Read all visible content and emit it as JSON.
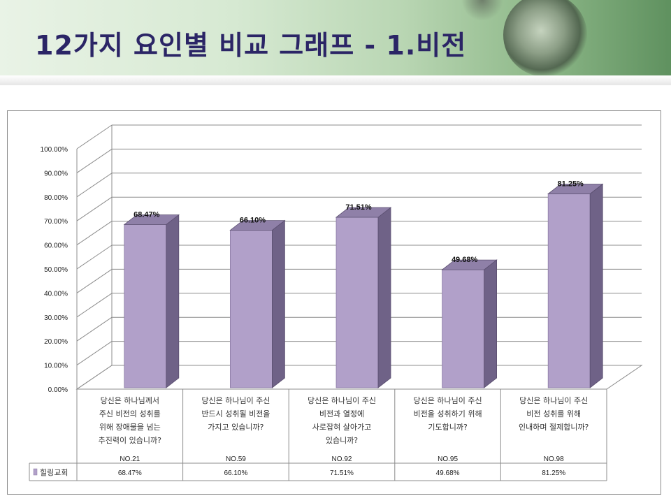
{
  "title": "12가지 요인별 비교 그래프 - 1.비전",
  "chart_data": {
    "type": "bar",
    "yticks": [
      "0.00%",
      "10.00%",
      "20.00%",
      "30.00%",
      "40.00%",
      "50.00%",
      "60.00%",
      "70.00%",
      "80.00%",
      "90.00%",
      "100.00%"
    ],
    "ylim": [
      0,
      100
    ],
    "categories": [
      {
        "question": [
          "당신은 하나님께서",
          "주신 비전의 성취를",
          "위해 장애물을 넘는",
          "추진력이 있습니까?"
        ],
        "no": "NO.21"
      },
      {
        "question": [
          "당신은 하나님이 주신",
          "반드시 성취될 비전을",
          "가지고 있습니까?"
        ],
        "no": "NO.59"
      },
      {
        "question": [
          "당신은 하나님이 주신",
          "비전과 열정에",
          "사로잡혀 살아가고",
          "있습니까?"
        ],
        "no": "NO.92"
      },
      {
        "question": [
          "당신은 하나님이 주신",
          "비전을 성취하기 위해",
          "기도합니까?"
        ],
        "no": "NO.95"
      },
      {
        "question": [
          "당신은 하나님이 주신",
          "비전 성취를 위해",
          "인내하며 절제합니까?"
        ],
        "no": "NO.98"
      }
    ],
    "series": [
      {
        "name": "힐링교회",
        "values": [
          68.47,
          66.1,
          71.51,
          49.68,
          81.25
        ],
        "labels": [
          "68.47%",
          "66.10%",
          "71.51%",
          "49.68%",
          "81.25%"
        ]
      }
    ],
    "colors": {
      "bar_front": "#b1a0c9",
      "bar_side": "#6f6287",
      "bar_top": "#8f80a8",
      "grid": "#8c8c8c"
    }
  }
}
